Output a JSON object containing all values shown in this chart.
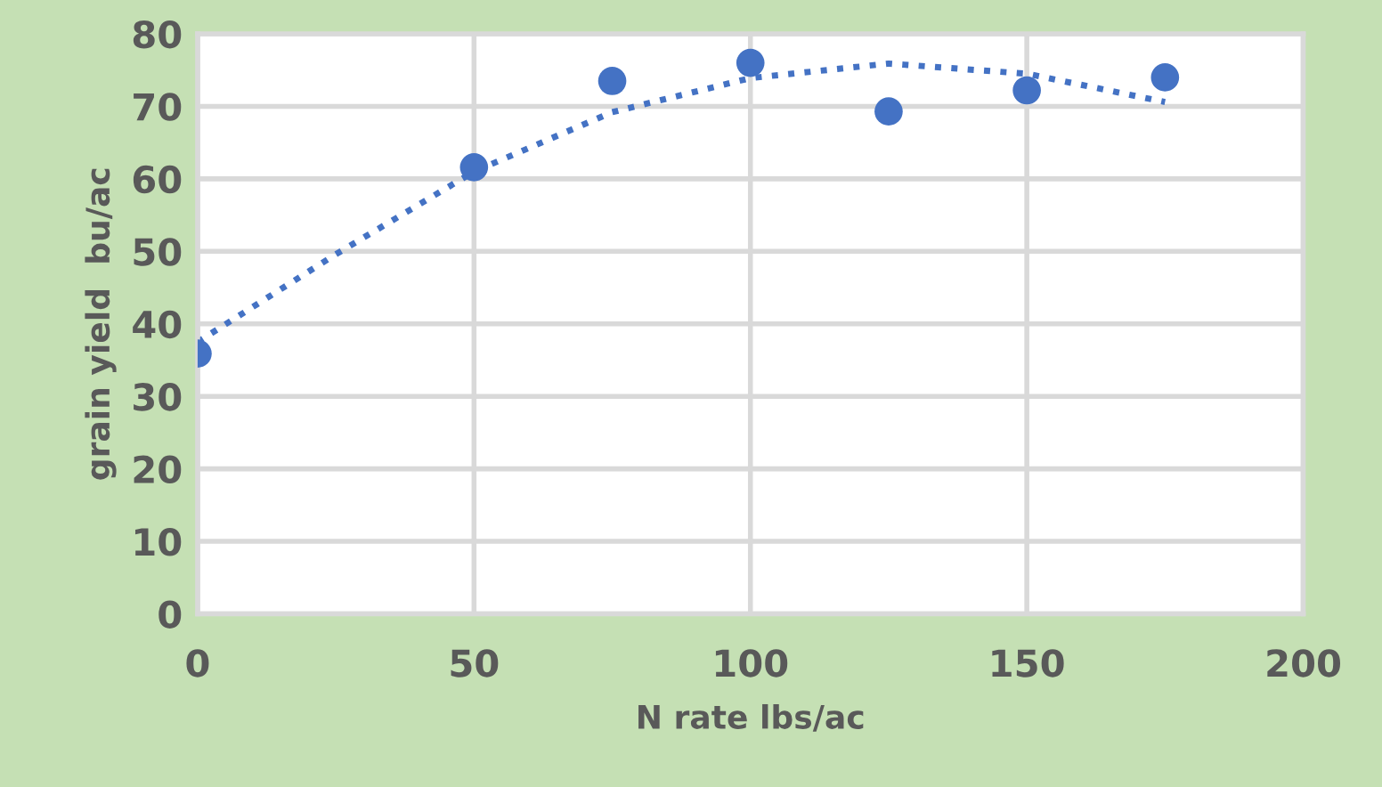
{
  "chart_data": {
    "type": "scatter",
    "xlabel": "N rate lbs/ac",
    "ylabel": "grain yield  bu/ac",
    "series": [
      {
        "color": "#4472c4",
        "marker": "circle",
        "x": [
          0,
          50,
          75,
          100,
          125,
          150,
          175
        ],
        "values": [
          35.9,
          61.6,
          73.5,
          76.0,
          69.3,
          72.2,
          74.0
        ]
      },
      {
        "type": "line",
        "color": "#4472c4",
        "line_style": "dotted",
        "marker": "none",
        "x": [
          0,
          25,
          50,
          75,
          100,
          125,
          150,
          175
        ],
        "values": [
          37.5,
          49.6,
          61.0,
          69.2,
          73.9,
          75.9,
          74.5,
          70.6
        ]
      }
    ],
    "xlim": [
      0,
      200
    ],
    "ylim": [
      0,
      80
    ],
    "xticks": [
      0,
      50,
      100,
      150,
      200
    ],
    "yticks": [
      0,
      10,
      20,
      30,
      40,
      50,
      60,
      70,
      80
    ],
    "grid": true,
    "legend": false
  }
}
